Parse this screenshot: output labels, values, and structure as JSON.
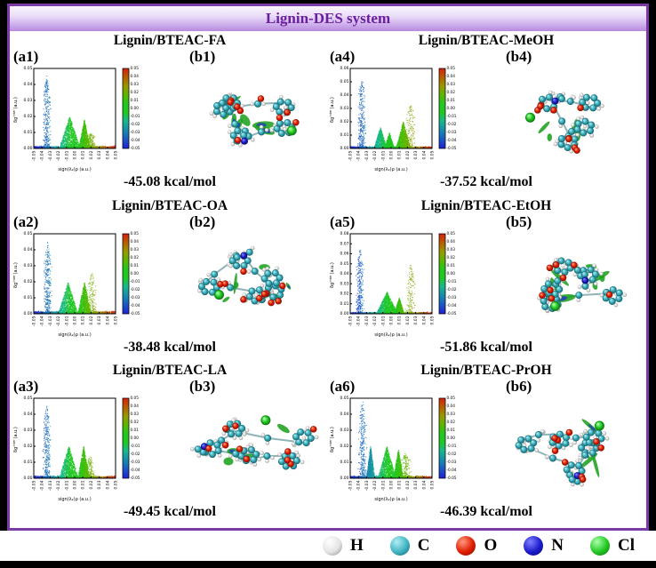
{
  "header": {
    "title": "Lignin-DES system"
  },
  "colors": {
    "outer_border": "#000000",
    "frame_border": "#7c3aa6",
    "title_text": "#6a1f9e",
    "titlebar_gradient_top": "#faf7fe",
    "titlebar_gradient_bottom": "#b78ae0",
    "isosurface_green": "#1ea01e",
    "colorbar_top_red": "#d82010",
    "colorbar_mid_green": "#20c820",
    "colorbar_bottom_blue": "#2020d8"
  },
  "axes": {
    "xlabel": "sign(λ₂)ρ (a.u.)",
    "ylabel": "δg^inter (a.u.)",
    "xlim": [
      -0.05,
      0.05
    ],
    "xtick_step": 0.01,
    "ytick_step": 0.01,
    "colorbar_range": [
      -0.05,
      0.05
    ]
  },
  "panels": [
    {
      "scatter_label": "(a1)",
      "mol_label": "(b1)",
      "title": "Lignin/BTEAC-FA",
      "energy": "-45.08 kcal/mol",
      "scatter": {
        "seed": 101,
        "ymax": 0.05,
        "lspike": [
          -0.034,
          0.046
        ],
        "humps": [
          [
            -0.006,
            0.013,
            0.02
          ],
          [
            0.012,
            0.007,
            0.018
          ]
        ],
        "rsparse": [
          0.02,
          0.01
        ]
      },
      "molecule": {
        "seed": 11,
        "rings": 5,
        "o": 9,
        "n": 1,
        "cl": 1
      }
    },
    {
      "scatter_label": "(a4)",
      "mol_label": "(b4)",
      "title": "Lignin/BTEAC-MeOH",
      "energy": "-37.52 kcal/mol",
      "scatter": {
        "seed": 104,
        "ymax": 0.06,
        "lspike": [
          -0.036,
          0.055
        ],
        "humps": [
          [
            -0.013,
            0.008,
            0.016
          ],
          [
            -0.002,
            0.006,
            0.012
          ],
          [
            0.015,
            0.009,
            0.02
          ]
        ],
        "rsparse": [
          0.024,
          0.034
        ]
      },
      "molecule": {
        "seed": 44,
        "rings": 4,
        "o": 9,
        "n": 1,
        "cl": 1
      }
    },
    {
      "scatter_label": "(a2)",
      "mol_label": "(b2)",
      "title": "Lignin/BTEAC-OA",
      "energy": "-38.48 kcal/mol",
      "scatter": {
        "seed": 102,
        "ymax": 0.05,
        "lspike": [
          -0.033,
          0.046
        ],
        "humps": [
          [
            -0.008,
            0.012,
            0.02
          ],
          [
            0.012,
            0.008,
            0.02
          ]
        ],
        "rsparse": [
          0.021,
          0.026
        ]
      },
      "molecule": {
        "seed": 22,
        "rings": 5,
        "o": 10,
        "n": 1,
        "cl": 1
      }
    },
    {
      "scatter_label": "(a5)",
      "mol_label": "(b5)",
      "title": "Lignin/BTEAC-EtOH",
      "energy": "-51.86 kcal/mol",
      "scatter": {
        "seed": 105,
        "ymax": 0.08,
        "lspike": [
          -0.038,
          0.065
        ],
        "humps": [
          [
            -0.005,
            0.013,
            0.022
          ],
          [
            0.01,
            0.006,
            0.016
          ]
        ],
        "rsparse": [
          0.024,
          0.05
        ]
      },
      "molecule": {
        "seed": 55,
        "rings": 5,
        "o": 8,
        "n": 1,
        "cl": 1
      }
    },
    {
      "scatter_label": "(a3)",
      "mol_label": "(b3)",
      "title": "Lignin/BTEAC-LA",
      "energy": "-49.45 kcal/mol",
      "scatter": {
        "seed": 103,
        "ymax": 0.05,
        "lspike": [
          -0.034,
          0.046
        ],
        "humps": [
          [
            -0.007,
            0.012,
            0.02
          ],
          [
            0.011,
            0.007,
            0.02
          ]
        ],
        "rsparse": [
          0.019,
          0.014
        ]
      },
      "molecule": {
        "seed": 33,
        "rings": 5,
        "o": 10,
        "n": 1,
        "cl": 1
      }
    },
    {
      "scatter_label": "(a6)",
      "mol_label": "(b6)",
      "title": "Lignin/BTEAC-PrOH",
      "energy": "-46.39 kcal/mol",
      "scatter": {
        "seed": 106,
        "ymax": 0.05,
        "lspike": [
          -0.035,
          0.05
        ],
        "humps": [
          [
            -0.025,
            0.005,
            0.02
          ],
          [
            -0.005,
            0.011,
            0.02
          ],
          [
            0.009,
            0.006,
            0.018
          ]
        ],
        "rsparse": [
          0.018,
          0.016
        ]
      },
      "molecule": {
        "seed": 66,
        "rings": 5,
        "o": 9,
        "n": 1,
        "cl": 1
      }
    }
  ],
  "legend": {
    "items": [
      {
        "symbol": "H",
        "light": "#ffffff",
        "base": "#e4e4e4",
        "dark": "#8a8a8a"
      },
      {
        "symbol": "C",
        "light": "#b0eef4",
        "base": "#40b4c4",
        "dark": "#13606a"
      },
      {
        "symbol": "O",
        "light": "#ff9a80",
        "base": "#e01c00",
        "dark": "#7e0e00"
      },
      {
        "symbol": "N",
        "light": "#8080ff",
        "base": "#1a1acc",
        "dark": "#0a0a66"
      },
      {
        "symbol": "Cl",
        "light": "#aaffaa",
        "base": "#22c822",
        "dark": "#0e6e0e"
      }
    ]
  },
  "chart_data": [
    {
      "type": "scatter",
      "panel": "a1",
      "system": "Lignin/BTEAC-FA",
      "xlabel": "sign(λ₂)ρ (a.u.)",
      "ylabel": "δg^inter (a.u.)",
      "xlim": [
        -0.05,
        0.05
      ],
      "ylim": [
        0,
        0.05
      ],
      "colorbar": {
        "range": [
          -0.05,
          0.05
        ],
        "top": "red",
        "middle": "green",
        "bottom": "blue"
      },
      "clusters": [
        {
          "x": -0.034,
          "peak_y": 0.046,
          "color": "blue-teal"
        },
        {
          "x": -0.006,
          "peak_y": 0.02,
          "color": "green"
        },
        {
          "x": 0.012,
          "peak_y": 0.018,
          "color": "green-olive"
        }
      ],
      "annotation": "-45.08 kcal/mol"
    },
    {
      "type": "scatter",
      "panel": "a4",
      "system": "Lignin/BTEAC-MeOH",
      "xlabel": "sign(λ₂)ρ (a.u.)",
      "ylabel": "δg^inter (a.u.)",
      "xlim": [
        -0.05,
        0.05
      ],
      "ylim": [
        0,
        0.06
      ],
      "colorbar": {
        "range": [
          -0.05,
          0.05
        ],
        "top": "red",
        "middle": "green",
        "bottom": "blue"
      },
      "clusters": [
        {
          "x": -0.036,
          "peak_y": 0.055,
          "color": "blue-teal"
        },
        {
          "x": -0.013,
          "peak_y": 0.016,
          "color": "green"
        },
        {
          "x": 0.015,
          "peak_y": 0.02,
          "color": "green-olive"
        },
        {
          "x": 0.024,
          "peak_y": 0.034,
          "color": "olive"
        }
      ],
      "annotation": "-37.52 kcal/mol"
    },
    {
      "type": "scatter",
      "panel": "a2",
      "system": "Lignin/BTEAC-OA",
      "xlabel": "sign(λ₂)ρ (a.u.)",
      "ylabel": "δg^inter (a.u.)",
      "xlim": [
        -0.05,
        0.05
      ],
      "ylim": [
        0,
        0.05
      ],
      "colorbar": {
        "range": [
          -0.05,
          0.05
        ],
        "top": "red",
        "middle": "green",
        "bottom": "blue"
      },
      "clusters": [
        {
          "x": -0.033,
          "peak_y": 0.046,
          "color": "blue-teal"
        },
        {
          "x": -0.008,
          "peak_y": 0.02,
          "color": "green"
        },
        {
          "x": 0.012,
          "peak_y": 0.02,
          "color": "green-olive"
        }
      ],
      "annotation": "-38.48 kcal/mol"
    },
    {
      "type": "scatter",
      "panel": "a5",
      "system": "Lignin/BTEAC-EtOH",
      "xlabel": "sign(λ₂)ρ (a.u.)",
      "ylabel": "δg^inter (a.u.)",
      "xlim": [
        -0.05,
        0.05
      ],
      "ylim": [
        0,
        0.08
      ],
      "colorbar": {
        "range": [
          -0.05,
          0.05
        ],
        "top": "red",
        "middle": "green",
        "bottom": "blue"
      },
      "clusters": [
        {
          "x": -0.038,
          "peak_y": 0.065,
          "color": "blue-teal"
        },
        {
          "x": -0.005,
          "peak_y": 0.022,
          "color": "green"
        },
        {
          "x": 0.024,
          "peak_y": 0.05,
          "color": "olive"
        }
      ],
      "annotation": "-51.86 kcal/mol"
    },
    {
      "type": "scatter",
      "panel": "a3",
      "system": "Lignin/BTEAC-LA",
      "xlabel": "sign(λ₂)ρ (a.u.)",
      "ylabel": "δg^inter (a.u.)",
      "xlim": [
        -0.05,
        0.05
      ],
      "ylim": [
        0,
        0.05
      ],
      "colorbar": {
        "range": [
          -0.05,
          0.05
        ],
        "top": "red",
        "middle": "green",
        "bottom": "blue"
      },
      "clusters": [
        {
          "x": -0.034,
          "peak_y": 0.046,
          "color": "blue-teal"
        },
        {
          "x": -0.007,
          "peak_y": 0.02,
          "color": "green"
        },
        {
          "x": 0.011,
          "peak_y": 0.02,
          "color": "green-olive"
        }
      ],
      "annotation": "-49.45 kcal/mol"
    },
    {
      "type": "scatter",
      "panel": "a6",
      "system": "Lignin/BTEAC-PrOH",
      "xlabel": "sign(λ₂)ρ (a.u.)",
      "ylabel": "δg^inter (a.u.)",
      "xlim": [
        -0.05,
        0.05
      ],
      "ylim": [
        0,
        0.05
      ],
      "colorbar": {
        "range": [
          -0.05,
          0.05
        ],
        "top": "red",
        "middle": "green",
        "bottom": "blue"
      },
      "clusters": [
        {
          "x": -0.035,
          "peak_y": 0.05,
          "color": "blue-teal"
        },
        {
          "x": -0.025,
          "peak_y": 0.02,
          "color": "green"
        },
        {
          "x": -0.005,
          "peak_y": 0.02,
          "color": "green"
        },
        {
          "x": 0.009,
          "peak_y": 0.018,
          "color": "green-olive"
        }
      ],
      "annotation": "-46.39 kcal/mol"
    }
  ]
}
